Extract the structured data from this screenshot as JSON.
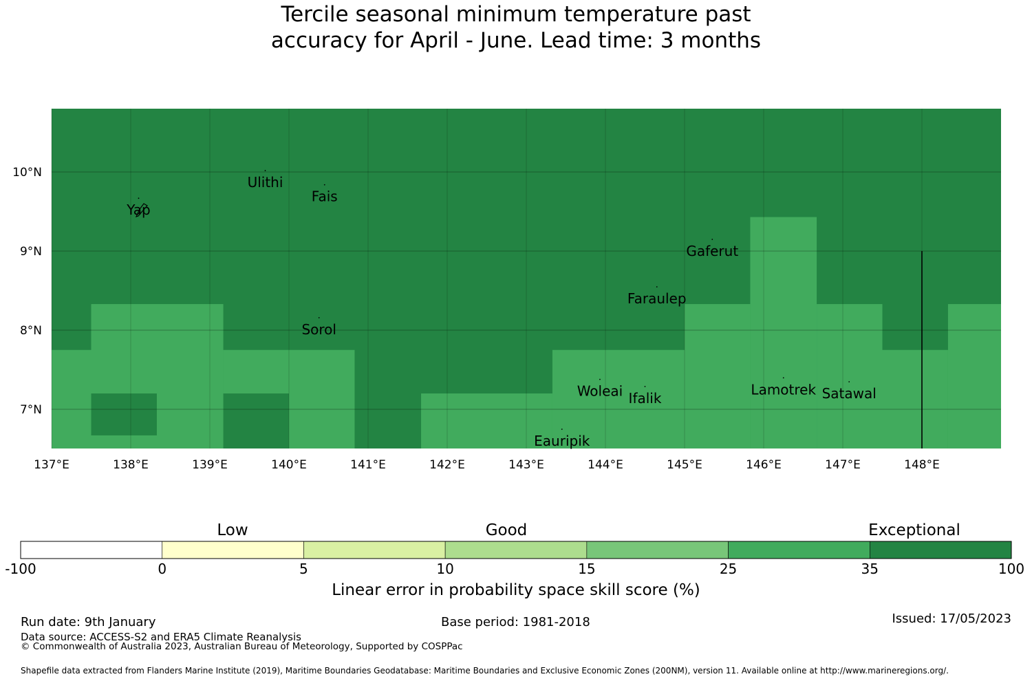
{
  "title": {
    "line1": "Tercile seasonal minimum temperature past",
    "line2": "accuracy for April - June. Lead time: 3 months"
  },
  "map": {
    "lon_range": [
      137.0,
      149.0
    ],
    "lat_range": [
      6.5,
      10.8
    ],
    "lon_ticks": [
      {
        "value": 137,
        "label": "137°E"
      },
      {
        "value": 138,
        "label": "138°E"
      },
      {
        "value": 139,
        "label": "139°E"
      },
      {
        "value": 140,
        "label": "140°E"
      },
      {
        "value": 141,
        "label": "141°E"
      },
      {
        "value": 142,
        "label": "142°E"
      },
      {
        "value": 143,
        "label": "143°E"
      },
      {
        "value": 144,
        "label": "144°E"
      },
      {
        "value": 145,
        "label": "145°E"
      },
      {
        "value": 146,
        "label": "146°E"
      },
      {
        "value": 147,
        "label": "147°E"
      },
      {
        "value": 148,
        "label": "148°E"
      }
    ],
    "lat_ticks": [
      {
        "value": 10,
        "label": "10°N"
      },
      {
        "value": 9,
        "label": "9°N"
      },
      {
        "value": 8,
        "label": "8°N"
      },
      {
        "value": 7,
        "label": "7°N"
      }
    ],
    "background_class": "35 to 100",
    "cells_25_35": [
      {
        "lon": [
          137.0,
          137.5
        ],
        "lat": [
          6.5,
          7.75
        ]
      },
      {
        "lon": [
          137.5,
          139.17
        ],
        "lat": [
          6.5,
          8.33
        ]
      },
      {
        "lon": [
          139.17,
          140.83
        ],
        "lat": [
          6.5,
          7.75
        ]
      },
      {
        "lon": [
          141.67,
          143.33
        ],
        "lat": [
          6.5,
          7.2
        ]
      },
      {
        "lon": [
          143.33,
          145.0
        ],
        "lat": [
          6.5,
          7.75
        ]
      },
      {
        "lon": [
          145.0,
          145.83
        ],
        "lat": [
          6.5,
          8.33
        ]
      },
      {
        "lon": [
          145.83,
          146.67
        ],
        "lat": [
          6.5,
          9.43
        ]
      },
      {
        "lon": [
          146.67,
          147.5
        ],
        "lat": [
          6.5,
          8.33
        ]
      },
      {
        "lon": [
          147.5,
          148.33
        ],
        "lat": [
          6.5,
          7.75
        ]
      },
      {
        "lon": [
          148.33,
          149.0
        ],
        "lat": [
          6.5,
          8.33
        ]
      }
    ],
    "cells_35_100": [
      {
        "lon": [
          137.5,
          138.33
        ],
        "lat": [
          6.67,
          7.2
        ]
      },
      {
        "lon": [
          139.17,
          140.0
        ],
        "lat": [
          6.5,
          7.2
        ]
      }
    ],
    "boundary_line": {
      "lon": 148.0,
      "lat": [
        6.5,
        9.0
      ]
    },
    "places": [
      {
        "name": "Yap",
        "lon": 138.1,
        "lat": 9.52
      },
      {
        "name": "Ulithi",
        "lon": 139.7,
        "lat": 9.87
      },
      {
        "name": "Fais",
        "lon": 140.45,
        "lat": 9.69
      },
      {
        "name": "Gaferut",
        "lon": 145.35,
        "lat": 9.0
      },
      {
        "name": "Faraulep",
        "lon": 144.65,
        "lat": 8.4
      },
      {
        "name": "Sorol",
        "lon": 140.38,
        "lat": 8.01
      },
      {
        "name": "Woleai",
        "lon": 143.93,
        "lat": 7.23
      },
      {
        "name": "Ifalik",
        "lon": 144.5,
        "lat": 7.14
      },
      {
        "name": "Lamotrek",
        "lon": 146.25,
        "lat": 7.25
      },
      {
        "name": "Satawal",
        "lon": 147.08,
        "lat": 7.2
      },
      {
        "name": "Eauripik",
        "lon": 143.45,
        "lat": 6.6
      }
    ]
  },
  "colorbar": {
    "categories": [
      {
        "label": "Low"
      },
      {
        "label": "Good"
      },
      {
        "label": "Exceptional"
      }
    ],
    "bins": [
      {
        "from": -100,
        "to": 0,
        "color": "#ffffff"
      },
      {
        "from": 0,
        "to": 5,
        "color": "#ffffcc"
      },
      {
        "from": 5,
        "to": 10,
        "color": "#d9f0a3"
      },
      {
        "from": 10,
        "to": 15,
        "color": "#addd8e"
      },
      {
        "from": 15,
        "to": 25,
        "color": "#78c679"
      },
      {
        "from": 25,
        "to": 35,
        "color": "#41ab5d"
      },
      {
        "from": 35,
        "to": 100,
        "color": "#238443"
      }
    ],
    "tick_labels": [
      "-100",
      "0",
      "5",
      "10",
      "15",
      "25",
      "35",
      "100"
    ],
    "label": "Linear error in probability space skill score (%)"
  },
  "footer": {
    "run_date": "Run date: 9th January",
    "base_period": "Base period: 1981-2018",
    "issued": "Issued: 17/05/2023",
    "data_source": "Data source: ACCESS-S2 and ERA5 Climate Reanalysis",
    "copyright": "© Commonwealth of Australia 2023, Australian Bureau of Meteorology, Supported by COSPPac",
    "shapefile": "Shapefile data extracted from Flanders Marine Institute (2019), Maritime Boundaries Geodatabase: Maritime Boundaries and Exclusive Economic Zones (200NM), version 11. Available online at http://www.marineregions.org/."
  }
}
